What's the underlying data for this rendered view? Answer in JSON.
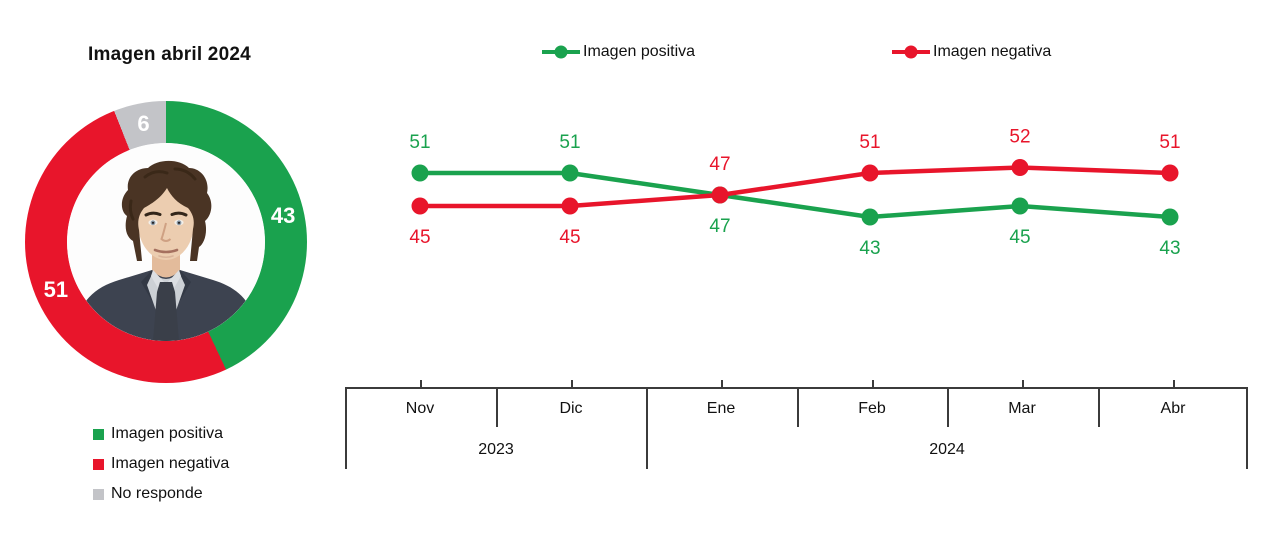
{
  "donut": {
    "title": "Imagen abril 2024",
    "slices": [
      {
        "label": "Imagen positiva",
        "value": 43,
        "color": "#1aa24e"
      },
      {
        "label": "Imagen negativa",
        "value": 51,
        "color": "#e8152b"
      },
      {
        "label": "No responde",
        "value": 6,
        "color": "#c3c4c8"
      }
    ]
  },
  "chart_data": {
    "type": "line",
    "categories": [
      "Nov",
      "Dic",
      "Ene",
      "Feb",
      "Mar",
      "Abr"
    ],
    "year_groups": [
      {
        "label": "2023",
        "cols": 2
      },
      {
        "label": "2024",
        "cols": 4
      }
    ],
    "series": [
      {
        "name": "Imagen positiva",
        "color": "#1aa24e",
        "values": [
          51,
          51,
          47,
          43,
          45,
          43
        ]
      },
      {
        "name": "Imagen negativa",
        "color": "#e8152b",
        "values": [
          45,
          45,
          47,
          51,
          52,
          51
        ]
      }
    ],
    "title": "",
    "xlabel": "",
    "ylabel": "",
    "ylim": [
      38,
      58
    ],
    "grid": false,
    "legend_position": "top",
    "data_labels": true
  }
}
